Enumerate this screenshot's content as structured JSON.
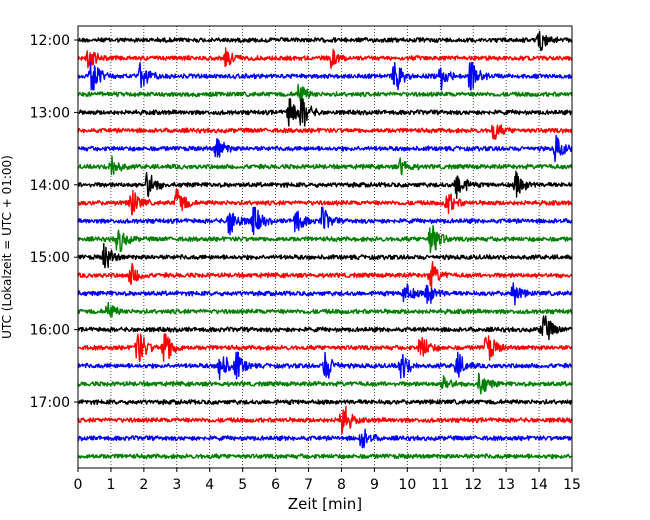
{
  "chart_data": {
    "type": "line",
    "subtype": "helicorder-seismogram",
    "xlabel": "Zeit  [min]",
    "ylabel": "UTC (Lokalzeit = UTC + 01:00)",
    "xlim": [
      0,
      15
    ],
    "x_ticks": [
      0,
      1,
      2,
      3,
      4,
      5,
      6,
      7,
      8,
      9,
      10,
      11,
      12,
      13,
      14,
      15
    ],
    "x_grid": true,
    "y_grid": false,
    "trace_interval_minutes": 15,
    "trace_colors": [
      "#000000",
      "#ff0000",
      "#0000ff",
      "#008000"
    ],
    "hour_labels": [
      "12:00",
      "13:00",
      "14:00",
      "15:00",
      "16:00",
      "17:00"
    ],
    "traces": [
      {
        "start": "12:00",
        "color": "#000000",
        "events": [
          {
            "t": 14.0,
            "amp": 1.3
          }
        ]
      },
      {
        "start": "12:15",
        "color": "#ff0000",
        "events": [
          {
            "t": 0.3,
            "amp": 1.2
          },
          {
            "t": 4.5,
            "amp": 1.0
          },
          {
            "t": 7.7,
            "amp": 1.0
          }
        ]
      },
      {
        "start": "12:30",
        "color": "#0000ff",
        "events": [
          {
            "t": 0.4,
            "amp": 2.4
          },
          {
            "t": 1.9,
            "amp": 1.8
          },
          {
            "t": 9.6,
            "amp": 2.0
          },
          {
            "t": 11.0,
            "amp": 1.8
          },
          {
            "t": 11.9,
            "amp": 2.2
          }
        ]
      },
      {
        "start": "12:45",
        "color": "#008000",
        "events": [
          {
            "t": 6.7,
            "amp": 1.3
          }
        ]
      },
      {
        "start": "13:00",
        "color": "#000000",
        "events": [
          {
            "t": 6.4,
            "amp": 2.2
          },
          {
            "t": 6.8,
            "amp": 1.8
          }
        ]
      },
      {
        "start": "13:15",
        "color": "#ff0000",
        "events": [
          {
            "t": 12.6,
            "amp": 1.2
          }
        ]
      },
      {
        "start": "13:30",
        "color": "#0000ff",
        "events": [
          {
            "t": 4.2,
            "amp": 1.5
          },
          {
            "t": 14.5,
            "amp": 1.5
          }
        ]
      },
      {
        "start": "13:45",
        "color": "#008000",
        "events": [
          {
            "t": 1.0,
            "amp": 1.4
          },
          {
            "t": 9.8,
            "amp": 1.0
          }
        ]
      },
      {
        "start": "14:00",
        "color": "#000000",
        "events": [
          {
            "t": 2.1,
            "amp": 1.8
          },
          {
            "t": 11.5,
            "amp": 1.8
          },
          {
            "t": 13.3,
            "amp": 1.6
          }
        ]
      },
      {
        "start": "14:15",
        "color": "#ff0000",
        "events": [
          {
            "t": 1.6,
            "amp": 1.8
          },
          {
            "t": 3.0,
            "amp": 2.0
          },
          {
            "t": 11.2,
            "amp": 1.5
          }
        ]
      },
      {
        "start": "14:30",
        "color": "#0000ff",
        "events": [
          {
            "t": 4.6,
            "amp": 2.0
          },
          {
            "t": 5.3,
            "amp": 2.2
          },
          {
            "t": 6.6,
            "amp": 1.6
          },
          {
            "t": 7.4,
            "amp": 1.6
          }
        ]
      },
      {
        "start": "14:45",
        "color": "#008000",
        "events": [
          {
            "t": 1.2,
            "amp": 1.8
          },
          {
            "t": 10.7,
            "amp": 2.6
          }
        ]
      },
      {
        "start": "15:00",
        "color": "#000000",
        "events": [
          {
            "t": 0.8,
            "amp": 1.6
          }
        ]
      },
      {
        "start": "15:15",
        "color": "#ff0000",
        "events": [
          {
            "t": 1.6,
            "amp": 1.3
          },
          {
            "t": 10.7,
            "amp": 1.7
          }
        ]
      },
      {
        "start": "15:30",
        "color": "#0000ff",
        "events": [
          {
            "t": 9.9,
            "amp": 1.4
          },
          {
            "t": 10.6,
            "amp": 1.5
          },
          {
            "t": 13.2,
            "amp": 1.3
          }
        ]
      },
      {
        "start": "15:45",
        "color": "#008000",
        "events": [
          {
            "t": 0.9,
            "amp": 1.0
          }
        ]
      },
      {
        "start": "16:00",
        "color": "#000000",
        "events": [
          {
            "t": 14.1,
            "amp": 2.6
          }
        ]
      },
      {
        "start": "16:15",
        "color": "#ff0000",
        "events": [
          {
            "t": 1.8,
            "amp": 2.6
          },
          {
            "t": 2.6,
            "amp": 2.8
          },
          {
            "t": 10.4,
            "amp": 1.8
          },
          {
            "t": 12.4,
            "amp": 2.0
          }
        ]
      },
      {
        "start": "16:30",
        "color": "#0000ff",
        "events": [
          {
            "t": 4.3,
            "amp": 2.2
          },
          {
            "t": 4.8,
            "amp": 1.8
          },
          {
            "t": 7.5,
            "amp": 1.8
          },
          {
            "t": 9.8,
            "amp": 1.8
          },
          {
            "t": 11.5,
            "amp": 1.6
          }
        ]
      },
      {
        "start": "16:45",
        "color": "#008000",
        "events": [
          {
            "t": 11.1,
            "amp": 1.0
          },
          {
            "t": 12.2,
            "amp": 1.4
          }
        ]
      },
      {
        "start": "17:00",
        "color": "#000000",
        "events": []
      },
      {
        "start": "17:15",
        "color": "#ff0000",
        "events": [
          {
            "t": 8.0,
            "amp": 2.2
          }
        ]
      },
      {
        "start": "17:30",
        "color": "#0000ff",
        "events": [
          {
            "t": 8.6,
            "amp": 1.3
          }
        ]
      },
      {
        "start": "17:45",
        "color": "#008000",
        "events": []
      }
    ]
  }
}
